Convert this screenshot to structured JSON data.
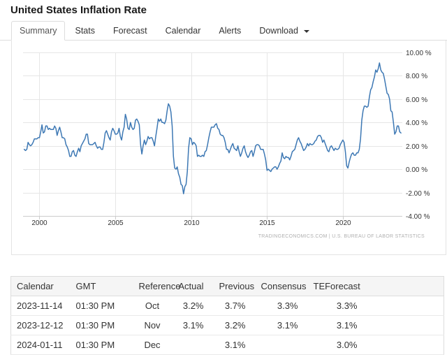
{
  "header": {
    "title": "United States Inflation Rate"
  },
  "tabs": {
    "items": [
      {
        "label": "Summary",
        "active": true
      },
      {
        "label": "Stats",
        "active": false
      },
      {
        "label": "Forecast",
        "active": false
      },
      {
        "label": "Calendar",
        "active": false
      },
      {
        "label": "Alerts",
        "active": false
      },
      {
        "label": "Download",
        "active": false,
        "has_caret": true
      }
    ]
  },
  "chart_data": {
    "type": "line",
    "title": "United States Inflation Rate",
    "xlabel": "",
    "ylabel": "",
    "frequency": "monthly",
    "xlim": [
      1998.92,
      2023.92
    ],
    "ylim": [
      -4,
      10
    ],
    "x_ticks": [
      2000,
      2005,
      2010,
      2015,
      2020
    ],
    "x_tick_labels": [
      "2000",
      "2005",
      "2010",
      "2015",
      "2020"
    ],
    "y_ticks": [
      10,
      8,
      6,
      4,
      2,
      0,
      -2,
      -4
    ],
    "y_tick_labels": [
      "10.00 %",
      "8.00 %",
      "6.00 %",
      "4.00 %",
      "2.00 %",
      "0.00 %",
      "-2.00 %",
      "-4.00 %"
    ],
    "grid": true,
    "grid_color": "#e6e6e6",
    "axis_color": "#cccccc",
    "axis_label_color": "#333333",
    "line_color": "#3d78b4",
    "legend": "none",
    "attribution": "TRADINGECONOMICS.COM | U.S. BUREAU OF LABOR STATISTICS",
    "series": [
      {
        "name": "United States Inflation Rate (% YoY)",
        "start_year": 1999,
        "start_month": 1,
        "values": [
          1.7,
          1.6,
          1.7,
          2.3,
          2.1,
          2.0,
          2.1,
          2.3,
          2.6,
          2.6,
          2.6,
          2.7,
          2.7,
          3.2,
          3.8,
          3.1,
          3.2,
          3.7,
          3.7,
          3.4,
          3.5,
          3.4,
          3.4,
          3.4,
          3.7,
          3.5,
          2.9,
          3.3,
          3.6,
          3.2,
          2.7,
          2.7,
          2.6,
          2.1,
          1.9,
          1.6,
          1.1,
          1.1,
          1.5,
          1.6,
          1.2,
          1.1,
          1.5,
          1.8,
          1.5,
          2.0,
          2.2,
          2.4,
          2.6,
          3.0,
          3.0,
          2.2,
          2.1,
          2.1,
          2.1,
          2.2,
          2.3,
          2.0,
          1.8,
          1.9,
          1.9,
          1.7,
          1.7,
          2.3,
          3.1,
          3.3,
          3.0,
          2.7,
          2.5,
          3.2,
          3.5,
          3.3,
          3.0,
          3.0,
          3.1,
          3.5,
          2.8,
          2.5,
          3.2,
          3.6,
          4.7,
          4.3,
          3.5,
          3.4,
          4.0,
          3.6,
          3.4,
          3.5,
          4.2,
          4.3,
          4.1,
          3.8,
          2.1,
          1.3,
          2.0,
          2.5,
          2.1,
          2.4,
          2.8,
          2.6,
          2.7,
          2.7,
          2.4,
          2.0,
          2.8,
          3.5,
          4.3,
          4.1,
          4.3,
          4.0,
          4.0,
          3.9,
          4.2,
          5.0,
          5.6,
          5.4,
          4.9,
          3.7,
          1.1,
          0.1,
          0.0,
          0.2,
          -0.4,
          -0.7,
          -1.3,
          -1.4,
          -2.1,
          -1.5,
          -1.3,
          -0.2,
          1.8,
          2.7,
          2.6,
          2.1,
          2.3,
          2.2,
          2.0,
          1.1,
          1.2,
          1.1,
          1.1,
          1.2,
          1.1,
          1.5,
          1.6,
          2.1,
          2.7,
          3.2,
          3.6,
          3.6,
          3.6,
          3.8,
          3.9,
          3.5,
          3.4,
          3.0,
          2.9,
          2.9,
          2.7,
          2.3,
          1.7,
          1.7,
          1.4,
          1.7,
          2.0,
          2.2,
          1.8,
          1.7,
          1.6,
          2.0,
          1.5,
          1.1,
          1.4,
          1.8,
          2.0,
          1.5,
          1.2,
          1.0,
          1.2,
          1.5,
          1.6,
          1.1,
          1.5,
          2.0,
          2.1,
          2.1,
          2.0,
          1.7,
          1.7,
          1.7,
          1.3,
          0.8,
          -0.1,
          0.0,
          -0.1,
          -0.2,
          0.0,
          0.1,
          0.2,
          0.2,
          0.0,
          0.2,
          0.5,
          0.7,
          1.4,
          1.0,
          0.9,
          1.1,
          1.0,
          1.0,
          0.8,
          1.1,
          1.5,
          1.6,
          1.7,
          2.1,
          2.5,
          2.7,
          2.4,
          2.2,
          1.9,
          1.6,
          1.7,
          1.9,
          2.2,
          2.0,
          2.2,
          2.1,
          2.1,
          2.2,
          2.4,
          2.5,
          2.8,
          2.9,
          2.9,
          2.7,
          2.3,
          2.5,
          2.2,
          1.9,
          1.6,
          1.5,
          1.9,
          2.0,
          1.8,
          1.6,
          1.8,
          1.7,
          1.7,
          1.8,
          2.1,
          2.3,
          2.5,
          2.3,
          1.5,
          0.3,
          0.1,
          0.6,
          1.0,
          1.3,
          1.4,
          1.2,
          1.2,
          1.4,
          1.4,
          1.7,
          2.6,
          4.2,
          5.0,
          5.4,
          5.4,
          5.3,
          5.4,
          6.2,
          6.8,
          7.0,
          7.5,
          7.9,
          8.5,
          8.3,
          8.6,
          9.1,
          8.5,
          8.3,
          8.2,
          7.7,
          7.1,
          6.5,
          6.4,
          6.0,
          5.0,
          4.9,
          4.0,
          3.0,
          3.2,
          3.7,
          3.7,
          3.2,
          3.1
        ]
      }
    ]
  },
  "table": {
    "headers": [
      "Calendar",
      "GMT",
      "Reference",
      "Actual",
      "Previous",
      "Consensus",
      "TEForecast"
    ],
    "rows": [
      [
        "2023-11-14",
        "01:30 PM",
        "Oct",
        "3.2%",
        "3.7%",
        "3.3%",
        "3.3%"
      ],
      [
        "2023-12-12",
        "01:30 PM",
        "Nov",
        "3.1%",
        "3.2%",
        "3.1%",
        "3.1%"
      ],
      [
        "2024-01-11",
        "01:30 PM",
        "Dec",
        "",
        "3.1%",
        "",
        "3.0%"
      ]
    ]
  }
}
